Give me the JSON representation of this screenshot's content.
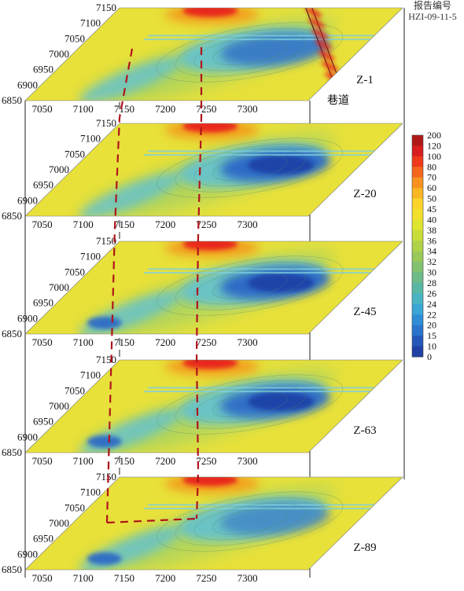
{
  "header": {
    "line1": "报告编号",
    "line2": "HZI-09-11-5"
  },
  "tunnel_label": "巷道",
  "x_ticks": [
    "7050",
    "7100",
    "7150",
    "7200",
    "7250",
    "7300"
  ],
  "y_ticks": [
    "7150",
    "7100",
    "7050",
    "7000",
    "6950",
    "6900",
    "6850"
  ],
  "slices": [
    {
      "label": "Z-1"
    },
    {
      "label": "Z-20"
    },
    {
      "label": "Z-45"
    },
    {
      "label": "Z-63"
    },
    {
      "label": "Z-89"
    }
  ],
  "colorbar": {
    "levels": [
      "200",
      "120",
      "100",
      "80",
      "70",
      "60",
      "50",
      "45",
      "40",
      "38",
      "36",
      "34",
      "32",
      "30",
      "28",
      "26",
      "24",
      "22",
      "20",
      "15",
      "10",
      "0"
    ],
    "colors": [
      "#b01818",
      "#d81e1e",
      "#ee3a1a",
      "#f4661c",
      "#f7921e",
      "#f9b522",
      "#fad42a",
      "#f2e02c",
      "#dfe430",
      "#c8dc3a",
      "#b0d248",
      "#9ac95a",
      "#82c170",
      "#6cbb88",
      "#58b8a4",
      "#48b4c2",
      "#3aa6d6",
      "#2f8ed6",
      "#2a74cc",
      "#2557b8",
      "#2040a4"
    ],
    "description": "contour level legend"
  },
  "field_colors": {
    "background": "#e8e13a",
    "high_red": "#e8241c",
    "high_orange": "#f39a1e",
    "mid_green": "#9cd06a",
    "low_cyan": "#5dc0d8",
    "low_blue": "#2a66c6",
    "lowest_blue": "#1e40a6",
    "tunnel_marker": "#b0141a"
  }
}
